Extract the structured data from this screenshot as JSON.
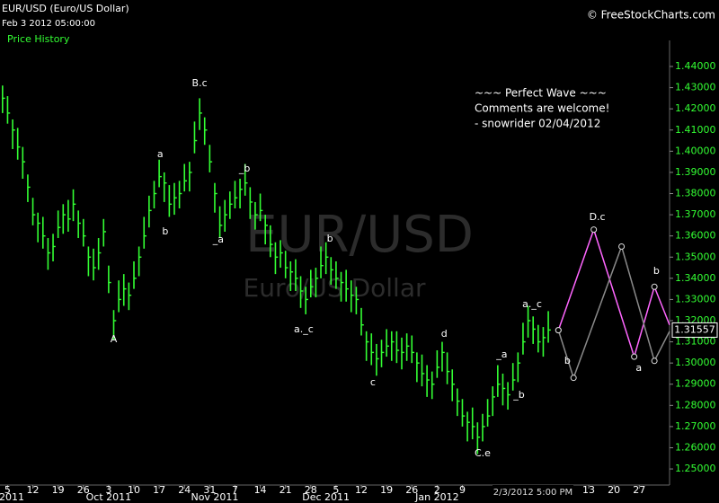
{
  "chart_data": {
    "type": "hlc",
    "title": "EUR/USD (Euro/US Dollar)",
    "subtitle": "Feb 3 2012 05:00:00",
    "legend_label": "Price History",
    "copyright": "© FreeStockCharts.com",
    "watermark_title": "EUR/USD",
    "watermark_subtitle": "Euro/US Dollar",
    "notes": [
      "~~~ Perfect Wave ~~~",
      "Comments are welcome!",
      "- snowrider  02/04/2012"
    ],
    "cursor_label": "2/3/2012 5:00 PM",
    "color": "#33ff33",
    "xlim": [
      -0.5,
      132
    ],
    "ylim": [
      1.2424,
      1.4523
    ],
    "high": [
      1.431,
      1.426,
      1.415,
      1.411,
      1.402,
      1.389,
      1.378,
      1.371,
      1.369,
      1.359,
      1.361,
      1.372,
      1.375,
      1.377,
      1.382,
      1.372,
      1.368,
      1.355,
      1.354,
      1.359,
      1.368,
      1.346,
      1.325,
      1.339,
      1.342,
      1.338,
      1.348,
      1.355,
      1.369,
      1.379,
      1.386,
      1.396,
      1.39,
      1.384,
      1.385,
      1.386,
      1.394,
      1.395,
      1.414,
      1.425,
      1.416,
      1.403,
      1.385,
      1.374,
      1.377,
      1.381,
      1.386,
      1.387,
      1.394,
      1.383,
      1.376,
      1.38,
      1.37,
      1.365,
      1.357,
      1.358,
      1.353,
      1.348,
      1.349,
      1.341,
      1.336,
      1.344,
      1.345,
      1.355,
      1.357,
      1.35,
      1.348,
      1.343,
      1.344,
      1.339,
      1.336,
      1.326,
      1.315,
      1.314,
      1.309,
      1.311,
      1.316,
      1.315,
      1.315,
      1.312,
      1.314,
      1.313,
      1.305,
      1.304,
      1.299,
      1.296,
      1.306,
      1.31,
      1.305,
      1.297,
      1.288,
      1.283,
      1.277,
      1.279,
      1.272,
      1.276,
      1.283,
      1.289,
      1.299,
      1.295,
      1.291,
      1.3,
      1.305,
      1.319,
      1.327,
      1.322,
      1.318,
      1.317,
      1.3245
    ],
    "low": [
      1.418,
      1.413,
      1.401,
      1.396,
      1.387,
      1.376,
      1.365,
      1.357,
      1.354,
      1.344,
      1.348,
      1.359,
      1.361,
      1.362,
      1.367,
      1.359,
      1.355,
      1.341,
      1.339,
      1.344,
      1.355,
      1.333,
      1.311,
      1.324,
      1.327,
      1.325,
      1.335,
      1.341,
      1.354,
      1.364,
      1.373,
      1.383,
      1.376,
      1.369,
      1.37,
      1.373,
      1.381,
      1.381,
      1.399,
      1.41,
      1.403,
      1.39,
      1.371,
      1.359,
      1.362,
      1.368,
      1.373,
      1.373,
      1.379,
      1.368,
      1.363,
      1.367,
      1.356,
      1.35,
      1.342,
      1.345,
      1.34,
      1.334,
      1.334,
      1.326,
      1.323,
      1.331,
      1.331,
      1.34,
      1.342,
      1.337,
      1.335,
      1.329,
      1.329,
      1.324,
      1.323,
      1.313,
      1.301,
      1.299,
      1.294,
      1.298,
      1.303,
      1.301,
      1.3,
      1.297,
      1.301,
      1.3,
      1.291,
      1.289,
      1.284,
      1.283,
      1.293,
      1.296,
      1.29,
      1.282,
      1.275,
      1.27,
      1.263,
      1.264,
      1.257,
      1.263,
      1.27,
      1.275,
      1.284,
      1.28,
      1.278,
      1.287,
      1.291,
      1.304,
      1.312,
      1.309,
      1.305,
      1.303,
      1.3096
    ],
    "close": [
      1.425,
      1.418,
      1.41,
      1.402,
      1.395,
      1.383,
      1.37,
      1.366,
      1.36,
      1.352,
      1.355,
      1.364,
      1.37,
      1.368,
      1.375,
      1.366,
      1.36,
      1.35,
      1.345,
      1.352,
      1.362,
      1.338,
      1.32,
      1.33,
      1.335,
      1.332,
      1.34,
      1.35,
      1.36,
      1.372,
      1.38,
      1.388,
      1.385,
      1.375,
      1.378,
      1.38,
      1.386,
      1.39,
      1.405,
      1.418,
      1.41,
      1.395,
      1.38,
      1.365,
      1.37,
      1.375,
      1.378,
      1.382,
      1.385,
      1.376,
      1.37,
      1.372,
      1.365,
      1.356,
      1.35,
      1.352,
      1.345,
      1.343,
      1.34,
      1.334,
      1.33,
      1.336,
      1.34,
      1.346,
      1.35,
      1.344,
      1.34,
      1.338,
      1.335,
      1.332,
      1.33,
      1.318,
      1.31,
      1.305,
      1.302,
      1.305,
      1.308,
      1.31,
      1.306,
      1.305,
      1.308,
      1.305,
      1.3,
      1.295,
      1.292,
      1.29,
      1.298,
      1.305,
      1.296,
      1.29,
      1.282,
      1.275,
      1.272,
      1.27,
      1.265,
      1.27,
      1.275,
      1.284,
      1.29,
      1.288,
      1.285,
      1.292,
      1.3,
      1.31,
      1.32,
      1.316,
      1.31,
      1.312,
      1.3156
    ],
    "last_price": {
      "value": 1.31557,
      "label": "1.31557"
    },
    "projections": [
      {
        "color": "#ff66ff",
        "x": [
          110,
          117,
          125,
          129,
          132
        ],
        "values": [
          1.3155,
          1.363,
          1.303,
          1.336,
          1.318
        ]
      },
      {
        "color": "#8a8a8a",
        "x": [
          110,
          113,
          122.5,
          129,
          132
        ],
        "values": [
          1.3155,
          1.293,
          1.355,
          1.301,
          1.315
        ]
      }
    ],
    "annotations": [
      {
        "text": "A",
        "x": 22,
        "y": 1.311
      },
      {
        "text": "a",
        "x": 31.2,
        "y": 1.3984
      },
      {
        "text": "b",
        "x": 32.2,
        "y": 1.362
      },
      {
        "text": "B.c",
        "x": 39,
        "y": 1.432
      },
      {
        "text": "_a",
        "x": 42.7,
        "y": 1.3582
      },
      {
        "text": "_b",
        "x": 47.9,
        "y": 1.3917
      },
      {
        "text": "a._c",
        "x": 59.6,
        "y": 1.3158
      },
      {
        "text": "b",
        "x": 64.8,
        "y": 1.3586
      },
      {
        "text": "c",
        "x": 73.3,
        "y": 1.2907
      },
      {
        "text": "d",
        "x": 87.4,
        "y": 1.3136
      },
      {
        "text": "C.e",
        "x": 95,
        "y": 1.2572
      },
      {
        "text": "_a",
        "x": 98.8,
        "y": 1.3039
      },
      {
        "text": "_b",
        "x": 102.2,
        "y": 1.2848
      },
      {
        "text": "a._c",
        "x": 104.8,
        "y": 1.3276
      },
      {
        "text": "b",
        "x": 111.8,
        "y": 1.3009
      },
      {
        "text": "D.c",
        "x": 117.7,
        "y": 1.3688
      },
      {
        "text": "a",
        "x": 125.9,
        "y": 1.2975
      },
      {
        "text": "b",
        "x": 129.4,
        "y": 1.3433
      }
    ],
    "yticks": [
      {
        "value": 1.25,
        "label": "1.25000"
      },
      {
        "value": 1.26,
        "label": "1.26000"
      },
      {
        "value": 1.27,
        "label": "1.27000"
      },
      {
        "value": 1.28,
        "label": "1.28000"
      },
      {
        "value": 1.29,
        "label": "1.29000"
      },
      {
        "value": 1.3,
        "label": "1.30000"
      },
      {
        "value": 1.31,
        "label": "1.31000"
      },
      {
        "value": 1.32,
        "label": "1.32000"
      },
      {
        "value": 1.33,
        "label": "1.33000"
      },
      {
        "value": 1.34,
        "label": "1.34000"
      },
      {
        "value": 1.35,
        "label": "1.35000"
      },
      {
        "value": 1.36,
        "label": "1.36000"
      },
      {
        "value": 1.37,
        "label": "1.37000"
      },
      {
        "value": 1.38,
        "label": "1.38000"
      },
      {
        "value": 1.39,
        "label": "1.39000"
      },
      {
        "value": 1.4,
        "label": "1.40000"
      },
      {
        "value": 1.41,
        "label": "1.41000"
      },
      {
        "value": 1.42,
        "label": "1.42000"
      },
      {
        "value": 1.43,
        "label": "1.43000"
      },
      {
        "value": 1.44,
        "label": "1.44000"
      }
    ],
    "xticks": [
      {
        "value": 1,
        "label": "5"
      },
      {
        "value": 6,
        "label": "12"
      },
      {
        "value": 11,
        "label": "19"
      },
      {
        "value": 16,
        "label": "26"
      },
      {
        "value": 21,
        "label": "3"
      },
      {
        "value": 26,
        "label": "10"
      },
      {
        "value": 31,
        "label": "17"
      },
      {
        "value": 36,
        "label": "24"
      },
      {
        "value": 41,
        "label": "31"
      },
      {
        "value": 46,
        "label": "7"
      },
      {
        "value": 51,
        "label": "14"
      },
      {
        "value": 56,
        "label": "21"
      },
      {
        "value": 61,
        "label": "28"
      },
      {
        "value": 66,
        "label": "5"
      },
      {
        "value": 71,
        "label": "12"
      },
      {
        "value": 76,
        "label": "19"
      },
      {
        "value": 81,
        "label": "26"
      },
      {
        "value": 86,
        "label": "2"
      },
      {
        "value": 91,
        "label": "9"
      },
      {
        "value": 116,
        "label": "13"
      },
      {
        "value": 121,
        "label": "20"
      },
      {
        "value": 126,
        "label": "27"
      }
    ],
    "month_ticks": [
      {
        "value": 1,
        "label": "2011"
      },
      {
        "value": 21,
        "label": "Oct 2011"
      },
      {
        "value": 42,
        "label": "Nov 2011"
      },
      {
        "value": 64,
        "label": "Dec 2011"
      },
      {
        "value": 86,
        "label": "Jan 2012"
      }
    ]
  }
}
